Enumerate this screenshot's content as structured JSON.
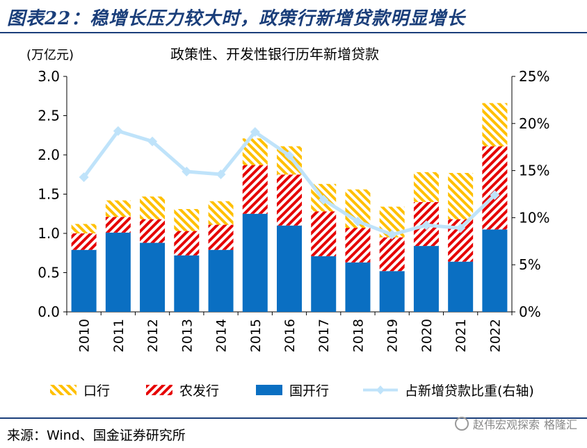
{
  "header": {
    "title": "图表22：稳增长压力较大时，政策行新增贷款明显增长",
    "source": "来源：Wind、国金证券研究所",
    "watermark": "赵伟宏观探索",
    "watermark_sub": "格隆汇"
  },
  "colors": {
    "guohang": "#0a6fc2",
    "nongfa": "#e60000",
    "kouhang": "#ffc000",
    "ratio_line": "#bfe3fa",
    "rule": "#1a3e7a"
  },
  "chart_data": {
    "type": "bar",
    "stacked": true,
    "title": "政策性、开发性银行历年新增贷款",
    "ylabel": "(万亿元)",
    "ylim": [
      0,
      3.0
    ],
    "yticks": [
      "0.0",
      "0.5",
      "1.0",
      "1.5",
      "2.0",
      "2.5",
      "3.0"
    ],
    "y2lim": [
      0,
      25
    ],
    "y2ticks": [
      "0%",
      "5%",
      "10%",
      "15%",
      "20%",
      "25%"
    ],
    "categories": [
      "2010",
      "2011",
      "2012",
      "2013",
      "2014",
      "2015",
      "2016",
      "2017",
      "2018",
      "2019",
      "2020",
      "2021",
      "2022"
    ],
    "series": [
      {
        "name": "国开行",
        "kind": "bar",
        "values": [
          0.79,
          1.01,
          0.88,
          0.72,
          0.79,
          1.25,
          1.1,
          0.71,
          0.63,
          0.52,
          0.84,
          0.64,
          1.05
        ]
      },
      {
        "name": "农发行",
        "kind": "bar",
        "values": [
          0.21,
          0.2,
          0.3,
          0.31,
          0.32,
          0.62,
          0.65,
          0.57,
          0.44,
          0.43,
          0.56,
          0.54,
          1.06
        ]
      },
      {
        "name": "口行",
        "kind": "bar",
        "values": [
          0.12,
          0.21,
          0.29,
          0.28,
          0.3,
          0.34,
          0.36,
          0.35,
          0.49,
          0.39,
          0.38,
          0.59,
          0.55
        ]
      },
      {
        "name": "占新增贷款比重(右轴)",
        "kind": "line",
        "axis": "right",
        "values": [
          14.3,
          19.2,
          18.1,
          14.9,
          14.6,
          19.1,
          16.6,
          11.9,
          9.6,
          8.2,
          9.2,
          8.9,
          12.4
        ]
      }
    ],
    "legend": [
      "口行",
      "农发行",
      "国开行",
      "占新增贷款比重(右轴)"
    ],
    "legend_position": "bottom"
  }
}
